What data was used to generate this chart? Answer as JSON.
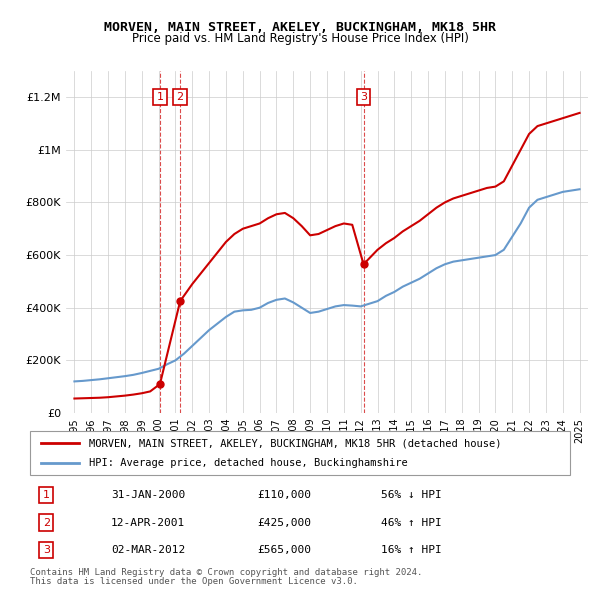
{
  "title": "MORVEN, MAIN STREET, AKELEY, BUCKINGHAM, MK18 5HR",
  "subtitle": "Price paid vs. HM Land Registry's House Price Index (HPI)",
  "footer1": "Contains HM Land Registry data © Crown copyright and database right 2024.",
  "footer2": "This data is licensed under the Open Government Licence v3.0.",
  "legend_label_red": "MORVEN, MAIN STREET, AKELEY, BUCKINGHAM, MK18 5HR (detached house)",
  "legend_label_blue": "HPI: Average price, detached house, Buckinghamshire",
  "transactions": [
    {
      "num": 1,
      "date": "31-JAN-2000",
      "price": 110000,
      "pct": "56% ↓ HPI",
      "year": 2000.08
    },
    {
      "num": 2,
      "date": "12-APR-2001",
      "price": 425000,
      "pct": "46% ↑ HPI",
      "year": 2001.28
    },
    {
      "num": 3,
      "date": "02-MAR-2012",
      "price": 565000,
      "pct": "16% ↑ HPI",
      "year": 2012.17
    }
  ],
  "hpi_years": [
    1995,
    1995.5,
    1996,
    1996.5,
    1997,
    1997.5,
    1998,
    1998.5,
    1999,
    1999.5,
    2000,
    2000.5,
    2001,
    2001.5,
    2002,
    2002.5,
    2003,
    2003.5,
    2004,
    2004.5,
    2005,
    2005.5,
    2006,
    2006.5,
    2007,
    2007.5,
    2008,
    2008.5,
    2009,
    2009.5,
    2010,
    2010.5,
    2011,
    2011.5,
    2012,
    2012.5,
    2013,
    2013.5,
    2014,
    2014.5,
    2015,
    2015.5,
    2016,
    2016.5,
    2017,
    2017.5,
    2018,
    2018.5,
    2019,
    2019.5,
    2020,
    2020.5,
    2021,
    2021.5,
    2022,
    2022.5,
    2023,
    2023.5,
    2024,
    2024.5,
    2025
  ],
  "hpi_values": [
    120000,
    122000,
    125000,
    128000,
    132000,
    136000,
    140000,
    145000,
    152000,
    160000,
    168000,
    185000,
    200000,
    225000,
    255000,
    285000,
    315000,
    340000,
    365000,
    385000,
    390000,
    392000,
    400000,
    418000,
    430000,
    435000,
    420000,
    400000,
    380000,
    385000,
    395000,
    405000,
    410000,
    408000,
    405000,
    415000,
    425000,
    445000,
    460000,
    480000,
    495000,
    510000,
    530000,
    550000,
    565000,
    575000,
    580000,
    585000,
    590000,
    595000,
    600000,
    620000,
    670000,
    720000,
    780000,
    810000,
    820000,
    830000,
    840000,
    845000,
    850000
  ],
  "red_years": [
    1995,
    1995.5,
    1996,
    1996.5,
    1997,
    1997.5,
    1998,
    1998.5,
    1999,
    1999.5,
    2000.08,
    2001.28,
    2002,
    2002.5,
    2003,
    2003.5,
    2004,
    2004.5,
    2005,
    2005.5,
    2006,
    2006.5,
    2007,
    2007.5,
    2008,
    2008.5,
    2009,
    2009.5,
    2010,
    2010.5,
    2011,
    2011.5,
    2012.17,
    2013,
    2013.5,
    2014,
    2014.5,
    2015,
    2015.5,
    2016,
    2016.5,
    2017,
    2017.5,
    2018,
    2018.5,
    2019,
    2019.5,
    2020,
    2020.5,
    2021,
    2021.5,
    2022,
    2022.5,
    2023,
    2023.5,
    2024,
    2024.5,
    2025
  ],
  "red_values": [
    55000,
    56000,
    57000,
    58000,
    60000,
    63000,
    66000,
    70000,
    75000,
    82000,
    110000,
    425000,
    490000,
    530000,
    570000,
    610000,
    650000,
    680000,
    700000,
    710000,
    720000,
    740000,
    755000,
    760000,
    740000,
    710000,
    675000,
    680000,
    695000,
    710000,
    720000,
    715000,
    565000,
    620000,
    645000,
    665000,
    690000,
    710000,
    730000,
    755000,
    780000,
    800000,
    815000,
    825000,
    835000,
    845000,
    855000,
    860000,
    880000,
    940000,
    1000000,
    1060000,
    1090000,
    1100000,
    1110000,
    1120000,
    1130000,
    1140000
  ],
  "ylim": [
    0,
    1300000
  ],
  "xlim": [
    1994.5,
    2025.5
  ],
  "yticks": [
    0,
    200000,
    400000,
    600000,
    800000,
    1000000,
    1200000
  ],
  "ytick_labels": [
    "£0",
    "£200K",
    "£400K",
    "£600K",
    "£800K",
    "£1M",
    "£1.2M"
  ],
  "xticks": [
    1995,
    1996,
    1997,
    1998,
    1999,
    2000,
    2001,
    2002,
    2003,
    2004,
    2005,
    2006,
    2007,
    2008,
    2009,
    2010,
    2011,
    2012,
    2013,
    2014,
    2015,
    2016,
    2017,
    2018,
    2019,
    2020,
    2021,
    2022,
    2023,
    2024,
    2025
  ],
  "red_color": "#cc0000",
  "blue_color": "#6699cc",
  "vline_color": "#cc0000",
  "box_color_border": "#cc0000",
  "background_color": "#ffffff",
  "grid_color": "#cccccc"
}
